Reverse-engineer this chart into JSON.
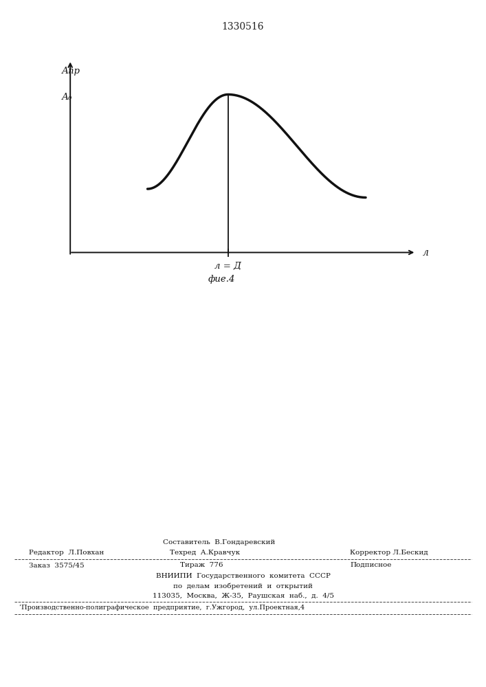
{
  "title": "1330516",
  "title_fontsize": 10,
  "title_color": "#222222",
  "fig_bg": "#ffffff",
  "curve_color": "#111111",
  "curve_linewidth": 2.5,
  "axis_color": "#111111",
  "vline_color": "#111111",
  "ylabel_line1": "Апр",
  "ylabel_line2": "А₀",
  "xlabel_text": "л",
  "vline_label": "л = Д",
  "fig_caption": "фие.4",
  "footer_sostavitel": "Составитель  В.Гондаревский",
  "footer_redaktor": "Редактор  Л.Повхан",
  "footer_tehred": "Техред  А.Кравчук",
  "footer_korrektor": "Корректор Л.Бескид",
  "footer_order": "Заказ  3575/45",
  "footer_tirazh": "Тираж  776",
  "footer_podpisnoe": "Подписное",
  "footer_vniip1": "ВНИИПИ  Государственного  комитета  СССР",
  "footer_vniip2": "по  делам  изобретений  и  открытий",
  "footer_vniip3": "113035,  Москва,  Ж-35,  Раушская  наб.,  д.  4/5",
  "footer_bottom": "’Производственно-полиграфическое  предприятие,  г.Ужгород,  ул.Проектная,4"
}
